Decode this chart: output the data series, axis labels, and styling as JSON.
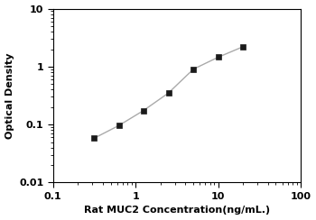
{
  "x_data": [
    0.313,
    0.625,
    1.25,
    2.5,
    5,
    10,
    20
  ],
  "y_data": [
    0.058,
    0.096,
    0.175,
    0.35,
    0.9,
    1.45,
    2.2
  ],
  "xlim": [
    0.1,
    100
  ],
  "ylim": [
    0.01,
    10
  ],
  "xlabel": "Rat MUC2 Concentration(ng/mL.)",
  "ylabel": "Optical Density",
  "line_color": "#aaaaaa",
  "marker_color": "#1a1a1a",
  "marker": "s",
  "marker_size": 4.5,
  "line_width": 1.0,
  "xlabel_fontsize": 8,
  "ylabel_fontsize": 8,
  "tick_fontsize": 8,
  "background_color": "#ffffff",
  "xtick_labels": [
    "0.1",
    "1",
    "10",
    "100"
  ],
  "xtick_positions": [
    0.1,
    1,
    10,
    100
  ],
  "ytick_labels": [
    "0.01",
    "0.1",
    "1",
    "10"
  ],
  "ytick_positions": [
    0.01,
    0.1,
    1,
    10
  ]
}
